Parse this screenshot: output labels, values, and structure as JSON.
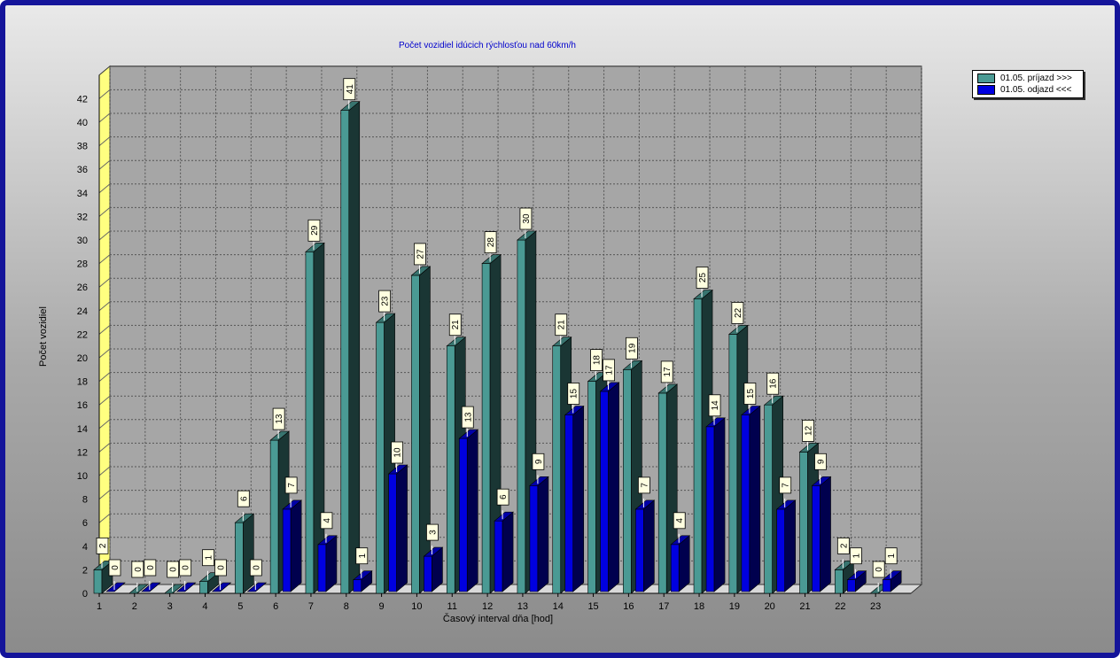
{
  "chart_data": {
    "type": "bar",
    "title": "Počet vozidiel idúcich rýchlosťou nad 60km/h",
    "xlabel": "Časový interval dňa [hod]",
    "ylabel": "Počet vozidiel",
    "ylim": [
      0,
      44
    ],
    "yticks": [
      0,
      2,
      4,
      6,
      8,
      10,
      12,
      14,
      16,
      18,
      20,
      22,
      24,
      26,
      28,
      30,
      32,
      34,
      36,
      38,
      40,
      42
    ],
    "grid": true,
    "legend_position": "top-right",
    "categories": [
      "1",
      "2",
      "3",
      "4",
      "5",
      "6",
      "7",
      "8",
      "9",
      "10",
      "11",
      "12",
      "13",
      "14",
      "15",
      "16",
      "17",
      "18",
      "19",
      "20",
      "21",
      "22",
      "23"
    ],
    "series": [
      {
        "name": "01.05.  príjazd >>>",
        "color": "#4a9a94",
        "values": [
          2,
          0,
          0,
          1,
          6,
          13,
          29,
          41,
          23,
          27,
          21,
          28,
          30,
          21,
          18,
          19,
          17,
          25,
          22,
          16,
          12,
          2,
          0
        ]
      },
      {
        "name": "01.05.  odjazd <<<",
        "color": "#0000e0",
        "values": [
          0,
          0,
          0,
          0,
          0,
          7,
          4,
          1,
          10,
          3,
          13,
          6,
          9,
          15,
          17,
          7,
          4,
          14,
          15,
          7,
          9,
          1,
          1
        ]
      }
    ]
  }
}
